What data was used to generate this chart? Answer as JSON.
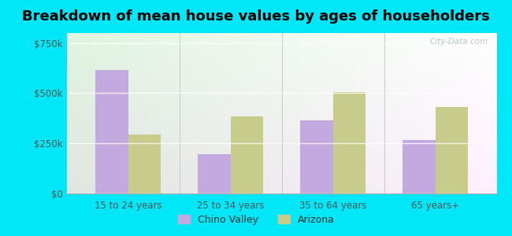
{
  "title": "Breakdown of mean house values by ages of householders",
  "categories": [
    "15 to 24 years",
    "25 to 34 years",
    "35 to 64 years",
    "65 years+"
  ],
  "chino_valley": [
    615000,
    195000,
    365000,
    265000
  ],
  "arizona": [
    295000,
    385000,
    505000,
    430000
  ],
  "chino_valley_color": "#c4a8e0",
  "arizona_color": "#c8cc8a",
  "ylim": [
    0,
    800000
  ],
  "yticks": [
    0,
    250000,
    500000,
    750000
  ],
  "ytick_labels": [
    "$0",
    "$250k",
    "$500k",
    "$750k"
  ],
  "legend_chino": "Chino Valley",
  "legend_arizona": "Arizona",
  "outer_background": "#00e8f8",
  "watermark": "City-Data.com",
  "bar_width": 0.32,
  "title_fontsize": 13,
  "tick_fontsize": 8.5,
  "legend_fontsize": 9
}
